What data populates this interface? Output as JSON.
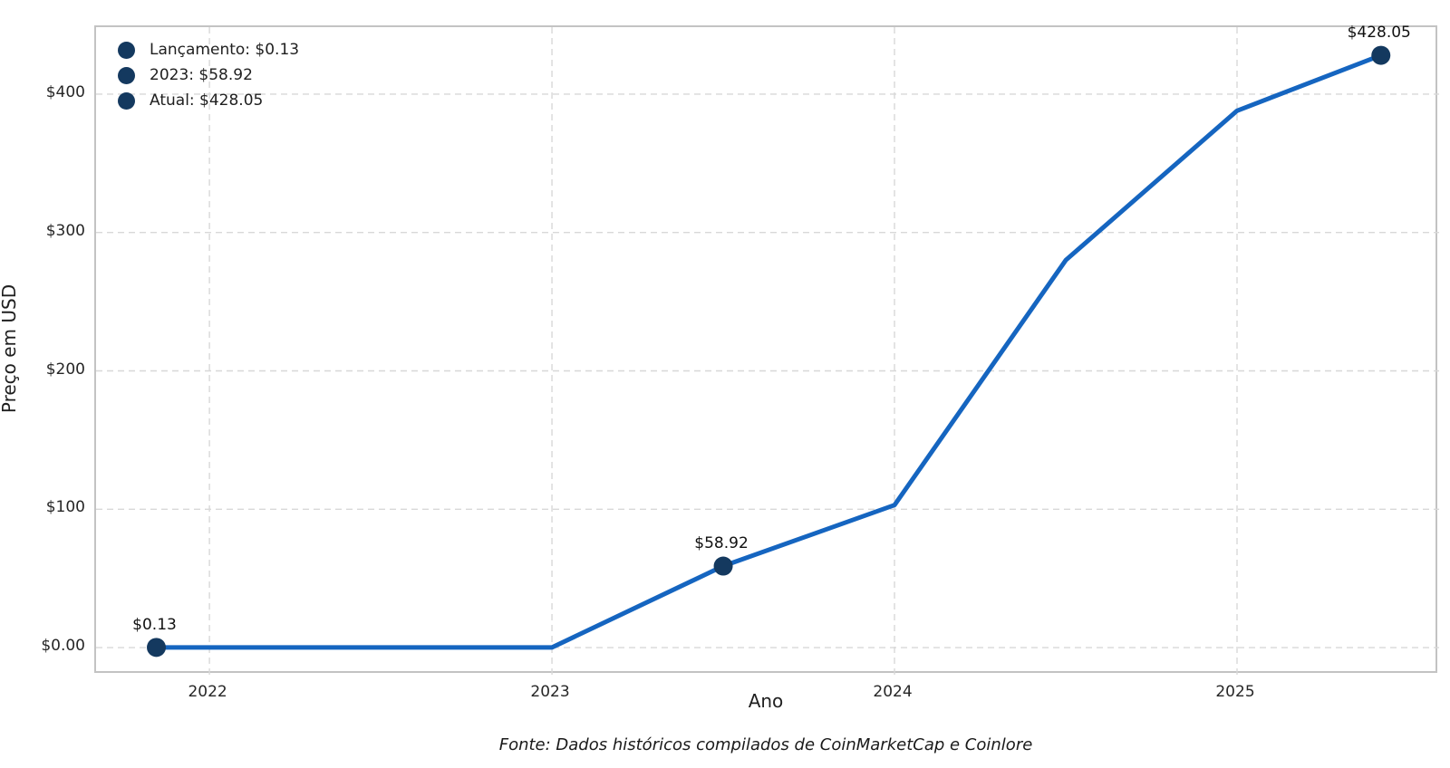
{
  "chart_data": {
    "type": "line",
    "x": [
      2021.845,
      2023.0,
      2023.5,
      2024.0,
      2024.5,
      2025.0,
      2025.42
    ],
    "y": [
      0.13,
      0.13,
      58.92,
      103,
      280,
      388,
      428.05
    ],
    "xlabel": "Ano",
    "ylabel": "Preço em USD",
    "title": "",
    "xlim": [
      2021.669,
      2025.59
    ],
    "ylim": [
      -19.6,
      448.4
    ],
    "grid": true,
    "x_ticks": [
      {
        "label": "2022",
        "value": 2022
      },
      {
        "label": "2023",
        "value": 2023
      },
      {
        "label": "2024",
        "value": 2024
      },
      {
        "label": "2025",
        "value": 2025
      }
    ],
    "y_ticks": [
      {
        "label": "$0.00",
        "value": 0
      },
      {
        "label": "$100",
        "value": 100
      },
      {
        "label": "$200",
        "value": 200
      },
      {
        "label": "$300",
        "value": 300
      },
      {
        "label": "$400",
        "value": 400
      }
    ],
    "marker_indices": [
      0,
      2,
      6
    ],
    "annotations": [
      {
        "text": "$0.13",
        "x": 2021.845,
        "y": 0.13
      },
      {
        "text": "$58.92",
        "x": 2023.5,
        "y": 58.92
      },
      {
        "text": "$428.05",
        "x": 2025.42,
        "y": 428.05
      }
    ],
    "legend": {
      "position": "top-left",
      "entries": [
        {
          "label": "Lançamento: $0.13"
        },
        {
          "label": "2023: $58.92"
        },
        {
          "label": "Atual: $428.05"
        }
      ]
    },
    "colors": {
      "line": "#1565c0",
      "marker": "#14395f",
      "grid": "#d8d8d8",
      "spine": "#c3c3c3",
      "text": "#1f1f1f"
    },
    "footer": "Fonte: Dados históricos compilados de CoinMarketCap e Coinlore"
  }
}
